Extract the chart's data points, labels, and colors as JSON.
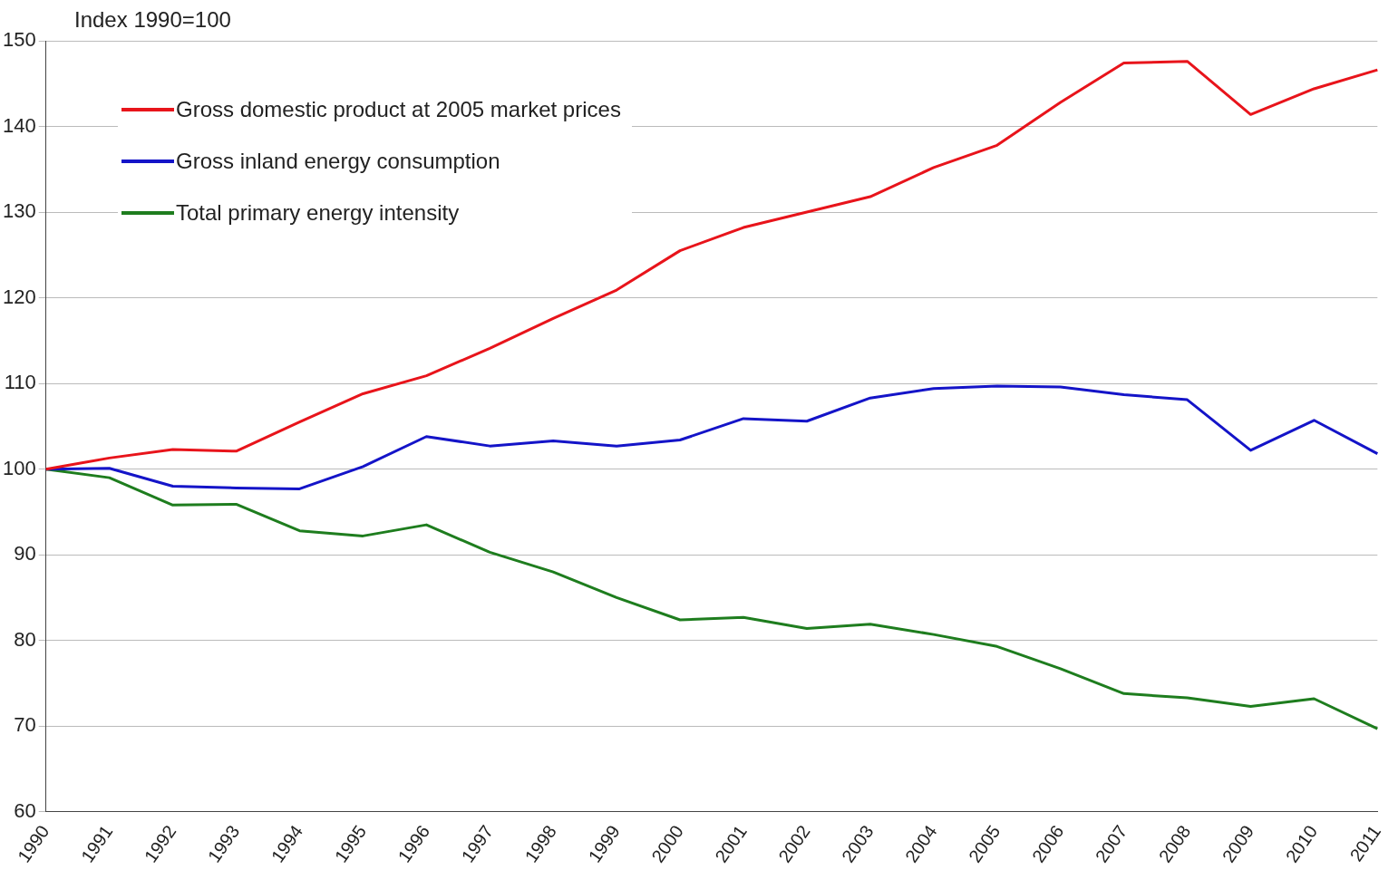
{
  "chart_data": {
    "type": "line",
    "ylabel": "Index 1990=100",
    "categories": [
      "1990",
      "1991",
      "1992",
      "1993",
      "1994",
      "1995",
      "1996",
      "1997",
      "1998",
      "1999",
      "2000",
      "2001",
      "2002",
      "2003",
      "2004",
      "2005",
      "2006",
      "2007",
      "2008",
      "2009",
      "2010",
      "2011"
    ],
    "series": [
      {
        "name": "Gross domestic product at 2005 market prices",
        "color": "#e8141b",
        "values": [
          100,
          101.3,
          102.3,
          102.1,
          105.5,
          108.8,
          110.9,
          114.1,
          117.6,
          120.9,
          125.5,
          128.2,
          130.0,
          131.8,
          135.2,
          137.8,
          142.8,
          147.4,
          147.6,
          141.4,
          144.4,
          146.6
        ]
      },
      {
        "name": "Gross inland energy consumption",
        "color": "#1414c8",
        "values": [
          100,
          100.1,
          98.0,
          97.8,
          97.7,
          100.3,
          103.8,
          102.7,
          103.3,
          102.7,
          103.4,
          105.9,
          105.6,
          108.3,
          109.4,
          109.7,
          109.6,
          108.7,
          108.1,
          102.2,
          105.7,
          101.8
        ]
      },
      {
        "name": "Total primary energy intensity",
        "color": "#1e7d1e",
        "values": [
          100,
          99.0,
          95.8,
          95.9,
          92.8,
          92.2,
          93.5,
          90.3,
          88.0,
          85.0,
          82.4,
          82.7,
          81.4,
          81.9,
          80.7,
          79.3,
          76.7,
          73.8,
          73.3,
          72.3,
          73.2,
          69.7
        ]
      }
    ],
    "ylim": [
      60,
      150
    ],
    "yticks": [
      60,
      70,
      80,
      90,
      100,
      110,
      120,
      130,
      140,
      150
    ],
    "grid": "y",
    "legend": "top left",
    "marker": "none",
    "line_style": "solid"
  }
}
